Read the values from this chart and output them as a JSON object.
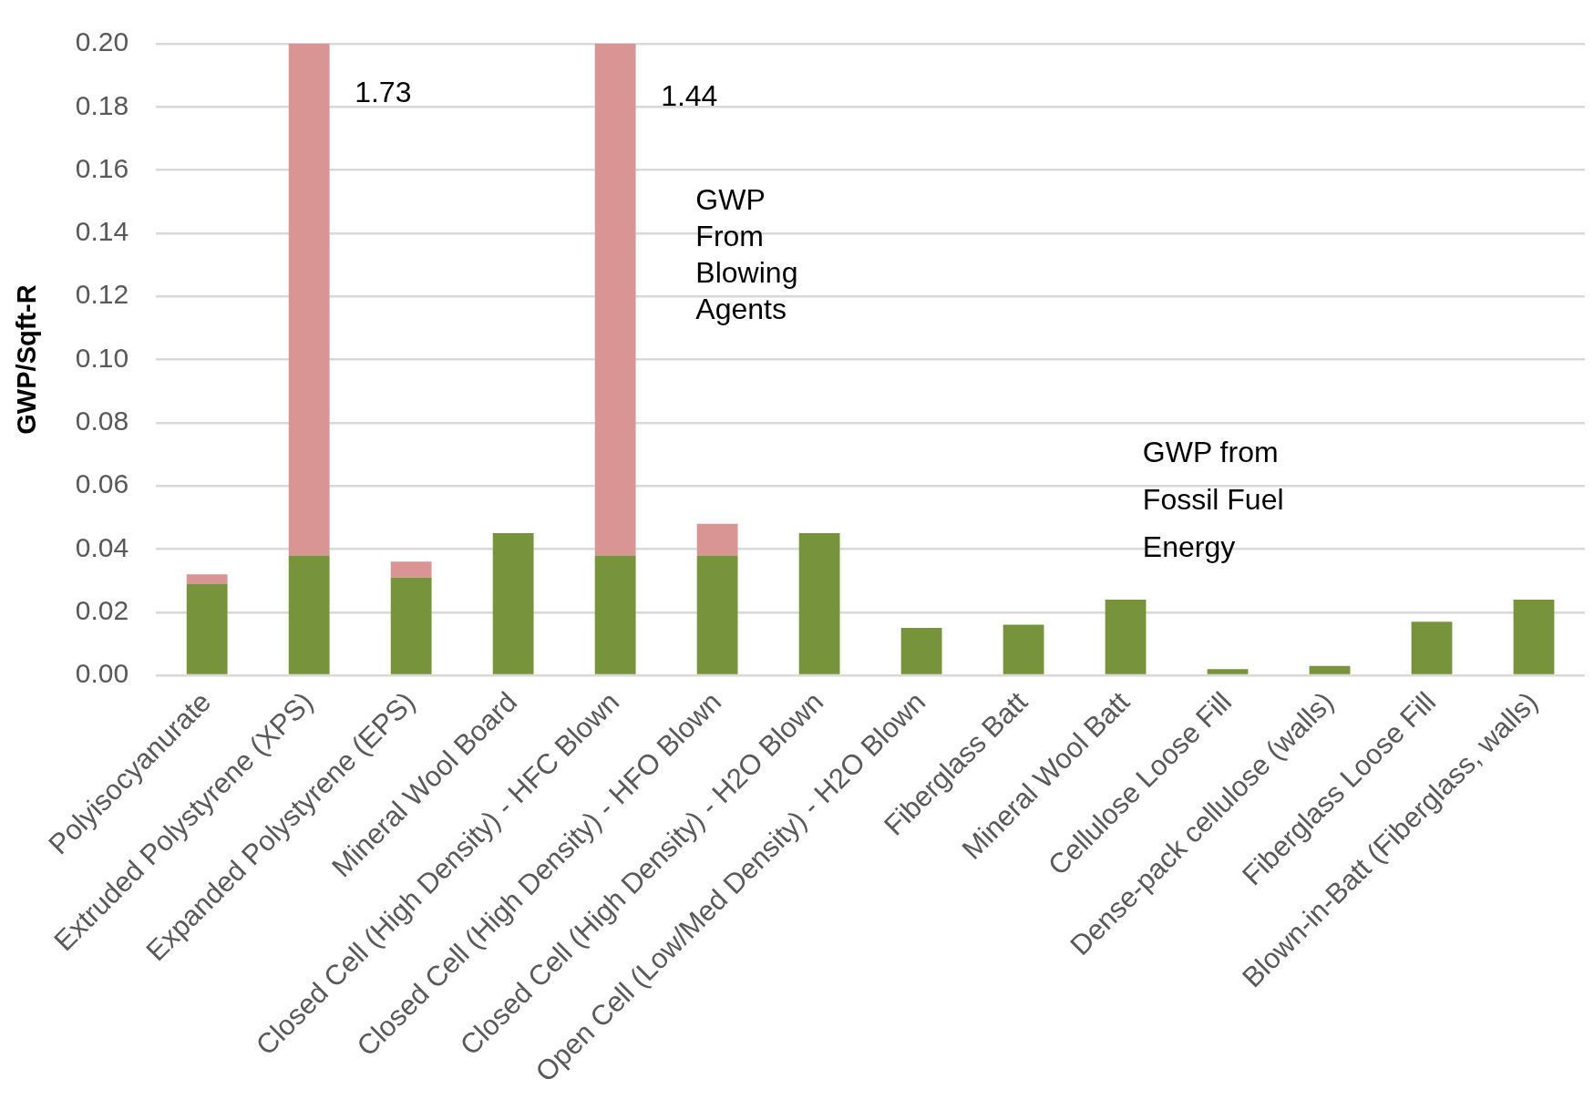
{
  "chart_data": {
    "type": "bar",
    "stacked": true,
    "ylabel": "GWP/Sqft-R",
    "categories": [
      "Polyisocyanurate",
      "Extruded Polystyrene (XPS)",
      "Expanded Polystyrene (EPS)",
      "Mineral Wool Board",
      "Closed Cell (High Density) - HFC Blown",
      "Closed Cell (High Density) - HFO Blown",
      "Closed Cell (High Density) - H2O Blown",
      "Open Cell (Low/Med Density) - H2O Blown",
      "Fiberglass Batt",
      "Mineral Wool Batt",
      "Cellulose Loose Fill",
      "Dense-pack cellulose (walls)",
      "Fiberglass Loose Fill",
      "Blown-in-Batt (Fiberglass, walls)"
    ],
    "series": [
      {
        "name": "GWP from Fossil Fuel Energy",
        "color": "#77933c",
        "values": [
          0.029,
          0.038,
          0.031,
          0.045,
          0.038,
          0.038,
          0.045,
          0.015,
          0.016,
          0.024,
          0.002,
          0.003,
          0.017,
          0.024
        ]
      },
      {
        "name": "GWP From Blowing Agents",
        "color": "#d99594",
        "values": [
          0.003,
          0.162,
          0.005,
          null,
          0.162,
          0.01,
          null,
          null,
          null,
          null,
          null,
          null,
          null,
          null
        ]
      }
    ],
    "ylim": [
      0,
      0.2
    ],
    "yticks": [
      {
        "value": 0,
        "label": "0.00"
      },
      {
        "value": 0.02,
        "label": "0.02"
      },
      {
        "value": 0.04,
        "label": "0.04"
      },
      {
        "value": 0.06,
        "label": "0.06"
      },
      {
        "value": 0.08,
        "label": "0.08"
      },
      {
        "value": 0.1,
        "label": "0.10"
      },
      {
        "value": 0.12,
        "label": "0.12"
      },
      {
        "value": 0.14,
        "label": "0.14"
      },
      {
        "value": 0.16,
        "label": "0.16"
      },
      {
        "value": 0.18,
        "label": "0.18"
      },
      {
        "value": 0.2,
        "label": "0.20"
      }
    ],
    "grid": "y",
    "legend": false,
    "annotations": [
      "1.73",
      "1.44"
    ]
  }
}
